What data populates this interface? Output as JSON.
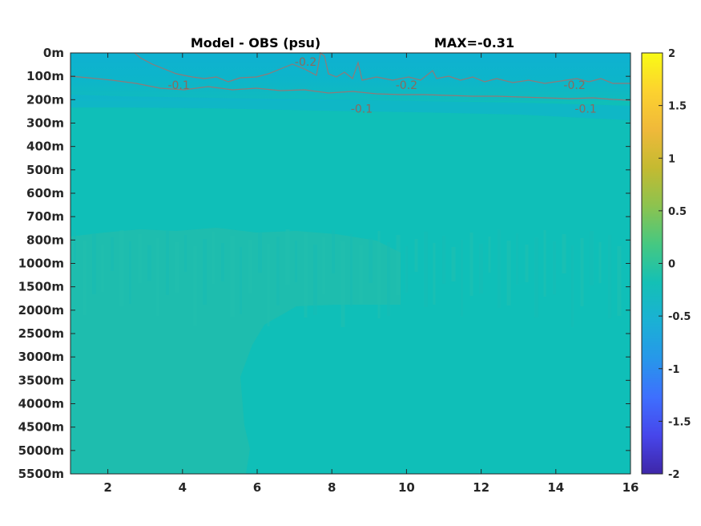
{
  "chart_data": {
    "type": "heatmap",
    "title_left": "Model - OBS (psu)",
    "title_right": "MAX=-0.31",
    "x_ticks": [
      2,
      4,
      6,
      8,
      10,
      12,
      14,
      16
    ],
    "xlim": [
      1,
      16
    ],
    "y_ticks": [
      "0m",
      "100m",
      "200m",
      "300m",
      "400m",
      "500m",
      "600m",
      "700m",
      "800m",
      "1000m",
      "1500m",
      "2000m",
      "2500m",
      "3000m",
      "3500m",
      "4000m",
      "4500m",
      "5000m",
      "5500m"
    ],
    "colorbar": {
      "ticks": [
        2,
        1.5,
        1,
        0.5,
        0,
        -0.5,
        -1,
        -1.5,
        -2
      ],
      "range": [
        -2,
        2
      ],
      "colormap": "parula",
      "colors": [
        "#3e26a8",
        "#4746eb",
        "#3e6ffe",
        "#2797ea",
        "#1ab1d4",
        "#14c0b5",
        "#45c882",
        "#8cc34f",
        "#c4ba31",
        "#f0b93a",
        "#fcd22f",
        "#f9fb15"
      ]
    },
    "contour_labels": [
      {
        "text": "-0.1",
        "x": 3.9,
        "depth": "100m"
      },
      {
        "text": "-0.2",
        "x": 7.3,
        "depth": "0m"
      },
      {
        "text": "-0.1",
        "x": 8.8,
        "depth": "200m"
      },
      {
        "text": "-0.2",
        "x": 10.0,
        "depth": "100m"
      },
      {
        "text": "-0.2",
        "x": 14.5,
        "depth": "100m"
      },
      {
        "text": "-0.1",
        "x": 14.8,
        "depth": "200m"
      }
    ],
    "fields": {
      "background": "#0fbfb8",
      "surface_layer": "#0fb3cf",
      "western_deep_water": "#1ebdae",
      "contour_color": "#8f7a78"
    }
  }
}
